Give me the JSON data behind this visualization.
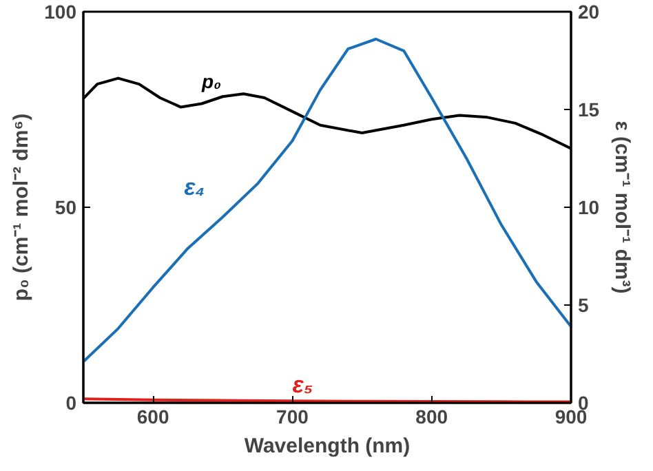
{
  "chart_data": {
    "type": "line",
    "xlabel": "Wavelength (nm)",
    "ylabel": "p₀ (cm⁻¹ mol⁻² dm⁶)",
    "y2label": "ε (cm⁻¹ mol⁻¹ dm³)",
    "xlim": [
      550,
      900
    ],
    "xticks": [
      600,
      700,
      800,
      900
    ],
    "ylim": [
      0,
      100
    ],
    "yticks": [
      0,
      50,
      100
    ],
    "y2lim": [
      0,
      20
    ],
    "y2ticks": [
      0,
      5,
      10,
      15,
      20
    ],
    "grid": false,
    "marker": "none",
    "line_style": "solid",
    "series": [
      {
        "name": "p₀",
        "color": "#000000",
        "x": [
          550,
          560,
          575,
          590,
          605,
          620,
          635,
          650,
          665,
          680,
          700,
          720,
          750,
          780,
          800,
          820,
          840,
          860,
          880,
          900
        ],
        "values": [
          77.8,
          81.5,
          83,
          81.5,
          78,
          75.6,
          76.5,
          78.3,
          79,
          78,
          74.5,
          71,
          69,
          71,
          72.5,
          73.5,
          73,
          71.5,
          68.5,
          65
        ]
      },
      {
        "name": "ε₄",
        "color": "#1a6fb5",
        "axis": "y2",
        "x": [
          550,
          575,
          600,
          625,
          650,
          675,
          700,
          720,
          740,
          760,
          780,
          800,
          825,
          850,
          875,
          900
        ],
        "values": [
          2.1,
          3.8,
          5.9,
          7.9,
          9.5,
          11.2,
          13.4,
          16,
          18.1,
          18.6,
          18,
          15.6,
          12.5,
          9.1,
          6.2,
          3.9
        ]
      },
      {
        "name": "ε₅",
        "color": "#e0201b",
        "axis": "y2",
        "x": [
          550,
          600,
          650,
          700,
          750,
          800,
          850,
          900
        ],
        "values": [
          0.2,
          0.15,
          0.12,
          0.1,
          0.08,
          0.07,
          0.06,
          0.05
        ]
      }
    ]
  }
}
